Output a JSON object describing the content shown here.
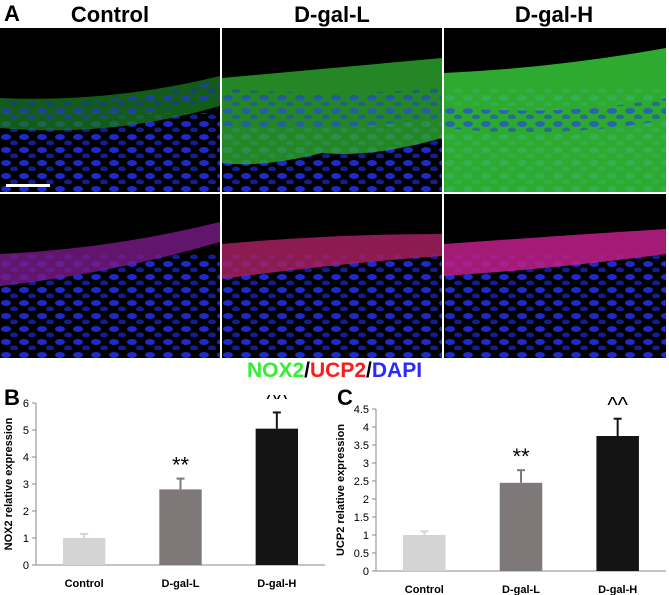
{
  "panel_a": {
    "letter": "A",
    "columns": [
      "Control",
      "D-gal-L",
      "D-gal-H"
    ],
    "legend": {
      "parts": [
        {
          "text": "NOX2",
          "color": "#33ee33"
        },
        {
          "text": "/",
          "color": "#000000"
        },
        {
          "text": "UCP2",
          "color": "#ff1a1a"
        },
        {
          "text": "/",
          "color": "#000000"
        },
        {
          "text": "DAPI",
          "color": "#2a2aff"
        }
      ]
    }
  },
  "chart_data": [
    {
      "panel": "B",
      "type": "bar",
      "categories": [
        "Control",
        "D-gal-L",
        "D-gal-H"
      ],
      "values": [
        1.0,
        2.8,
        5.05
      ],
      "errors": [
        0.15,
        0.4,
        0.6
      ],
      "colors": [
        "#d4d4d4",
        "#7f7878",
        "#141414"
      ],
      "annotations": [
        "",
        "**",
        "^^"
      ],
      "ylabel": "NOX2 relative expression",
      "ylim": [
        0,
        6
      ],
      "yticks": [
        "0",
        "1",
        "2",
        "3",
        "4",
        "5",
        "6"
      ]
    },
    {
      "panel": "C",
      "type": "bar",
      "categories": [
        "Control",
        "D-gal-L",
        "D-gal-H"
      ],
      "values": [
        1.0,
        2.45,
        3.75
      ],
      "errors": [
        0.1,
        0.35,
        0.48
      ],
      "colors": [
        "#d4d4d4",
        "#7f7878",
        "#141414"
      ],
      "annotations": [
        "",
        "**",
        "^^"
      ],
      "ylabel": "UCP2 relative expression",
      "ylim": [
        0,
        4.5
      ],
      "yticks": [
        "0",
        "0.5",
        "1",
        "1.5",
        "2",
        "2.5",
        "3",
        "3.5",
        "4",
        "4.5"
      ]
    }
  ]
}
